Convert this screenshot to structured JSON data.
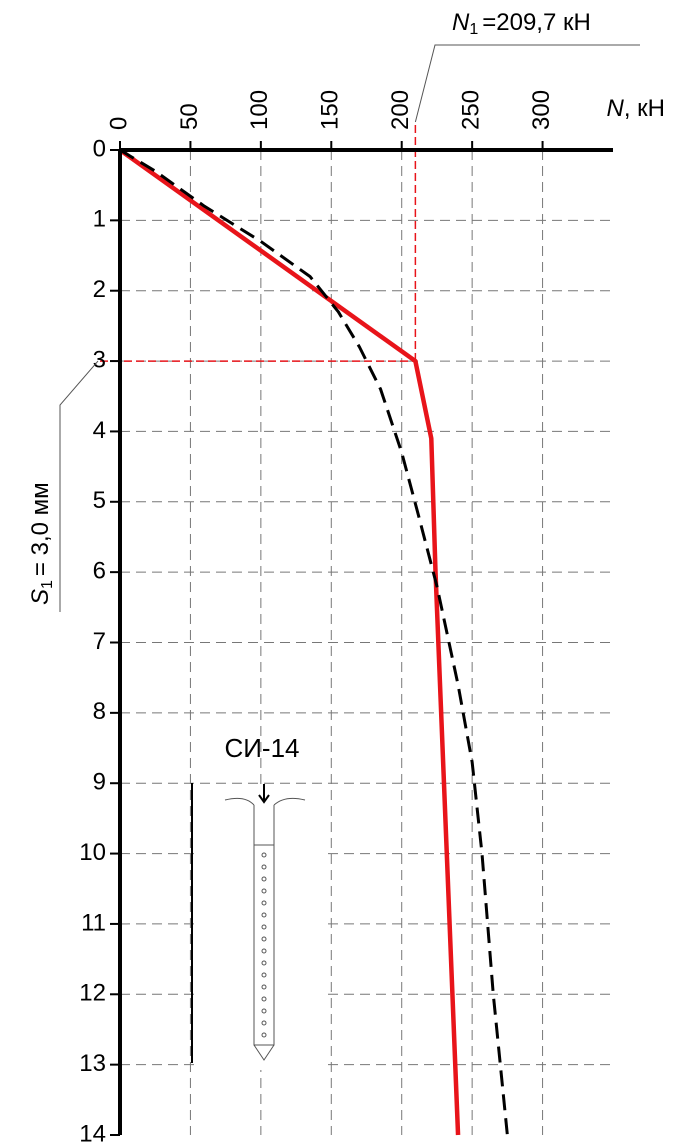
{
  "chart_data": {
    "type": "line",
    "x_label": {
      "symbol": "N",
      "text": ", кН"
    },
    "xlim": [
      0,
      350
    ],
    "xticks": [
      0,
      50,
      100,
      150,
      200,
      250,
      300
    ],
    "ylim": [
      0,
      14
    ],
    "y_inverted": true,
    "yticks": [
      0,
      1,
      2,
      3,
      4,
      5,
      6,
      7,
      8,
      9,
      10,
      11,
      12,
      13,
      14
    ],
    "grid": true,
    "series": [
      {
        "color": "#e8141a",
        "style": "solid",
        "x": [
          0,
          209.7,
          221,
          224,
          240
        ],
        "values": [
          0,
          3.0,
          4.1,
          6.0,
          14
        ]
      },
      {
        "color": "#000000",
        "style": "dashed",
        "x": [
          0,
          25,
          60,
          100,
          135,
          155,
          170,
          185,
          200,
          212,
          225,
          240,
          250,
          257,
          265,
          275
        ],
        "values": [
          0,
          0.3,
          0.8,
          1.3,
          1.8,
          2.3,
          2.8,
          3.4,
          4.3,
          5.2,
          6.2,
          7.6,
          8.7,
          10,
          12,
          14
        ]
      }
    ],
    "annotations": [
      {
        "symbol": "N",
        "subscript": "1",
        "text": "=209,7 кН",
        "axis": "x",
        "value": 209.7,
        "color": "#e8141a"
      },
      {
        "symbol": "S",
        "subscript": "1",
        "text": "= 3,0 мм",
        "axis": "y",
        "value": 3.0,
        "color": "#e8141a"
      }
    ],
    "inset_label": "СИ-14"
  }
}
